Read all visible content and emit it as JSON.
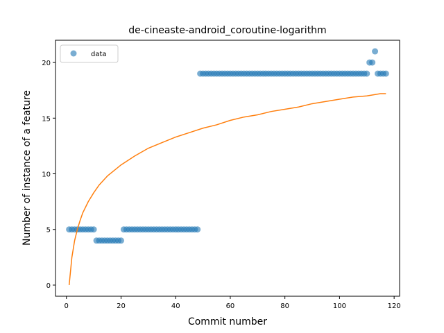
{
  "chart_data": {
    "type": "scatter",
    "title": "de-cineaste-android_coroutine-logarithm",
    "xlabel": "Commit number",
    "ylabel": "Number of instance of a feature",
    "xlim": [
      -4,
      122
    ],
    "ylim": [
      -1,
      22
    ],
    "xticks": [
      0,
      20,
      40,
      60,
      80,
      100,
      120
    ],
    "yticks": [
      0,
      5,
      10,
      15,
      20
    ],
    "grid": false,
    "legend": {
      "location": "upper left",
      "entries": [
        "data"
      ]
    },
    "colors": {
      "data": "#1f77b4",
      "fit": "#ff7f0e"
    },
    "series": [
      {
        "name": "data",
        "kind": "scatter",
        "points": [
          [
            1,
            5
          ],
          [
            2,
            5
          ],
          [
            3,
            5
          ],
          [
            4,
            5
          ],
          [
            5,
            5
          ],
          [
            6,
            5
          ],
          [
            7,
            5
          ],
          [
            8,
            5
          ],
          [
            9,
            5
          ],
          [
            10,
            5
          ],
          [
            11,
            4
          ],
          [
            12,
            4
          ],
          [
            13,
            4
          ],
          [
            14,
            4
          ],
          [
            15,
            4
          ],
          [
            16,
            4
          ],
          [
            17,
            4
          ],
          [
            18,
            4
          ],
          [
            19,
            4
          ],
          [
            20,
            4
          ],
          [
            21,
            5
          ],
          [
            22,
            5
          ],
          [
            23,
            5
          ],
          [
            24,
            5
          ],
          [
            25,
            5
          ],
          [
            26,
            5
          ],
          [
            27,
            5
          ],
          [
            28,
            5
          ],
          [
            29,
            5
          ],
          [
            30,
            5
          ],
          [
            31,
            5
          ],
          [
            32,
            5
          ],
          [
            33,
            5
          ],
          [
            34,
            5
          ],
          [
            35,
            5
          ],
          [
            36,
            5
          ],
          [
            37,
            5
          ],
          [
            38,
            5
          ],
          [
            39,
            5
          ],
          [
            40,
            5
          ],
          [
            41,
            5
          ],
          [
            42,
            5
          ],
          [
            43,
            5
          ],
          [
            44,
            5
          ],
          [
            45,
            5
          ],
          [
            46,
            5
          ],
          [
            47,
            5
          ],
          [
            48,
            5
          ],
          [
            49,
            19
          ],
          [
            50,
            19
          ],
          [
            51,
            19
          ],
          [
            52,
            19
          ],
          [
            53,
            19
          ],
          [
            54,
            19
          ],
          [
            55,
            19
          ],
          [
            56,
            19
          ],
          [
            57,
            19
          ],
          [
            58,
            19
          ],
          [
            59,
            19
          ],
          [
            60,
            19
          ],
          [
            61,
            19
          ],
          [
            62,
            19
          ],
          [
            63,
            19
          ],
          [
            64,
            19
          ],
          [
            65,
            19
          ],
          [
            66,
            19
          ],
          [
            67,
            19
          ],
          [
            68,
            19
          ],
          [
            69,
            19
          ],
          [
            70,
            19
          ],
          [
            71,
            19
          ],
          [
            72,
            19
          ],
          [
            73,
            19
          ],
          [
            74,
            19
          ],
          [
            75,
            19
          ],
          [
            76,
            19
          ],
          [
            77,
            19
          ],
          [
            78,
            19
          ],
          [
            79,
            19
          ],
          [
            80,
            19
          ],
          [
            81,
            19
          ],
          [
            82,
            19
          ],
          [
            83,
            19
          ],
          [
            84,
            19
          ],
          [
            85,
            19
          ],
          [
            86,
            19
          ],
          [
            87,
            19
          ],
          [
            88,
            19
          ],
          [
            89,
            19
          ],
          [
            90,
            19
          ],
          [
            91,
            19
          ],
          [
            92,
            19
          ],
          [
            93,
            19
          ],
          [
            94,
            19
          ],
          [
            95,
            19
          ],
          [
            96,
            19
          ],
          [
            97,
            19
          ],
          [
            98,
            19
          ],
          [
            99,
            19
          ],
          [
            100,
            19
          ],
          [
            101,
            19
          ],
          [
            102,
            19
          ],
          [
            103,
            19
          ],
          [
            104,
            19
          ],
          [
            105,
            19
          ],
          [
            106,
            19
          ],
          [
            107,
            19
          ],
          [
            108,
            19
          ],
          [
            109,
            19
          ],
          [
            110,
            19
          ],
          [
            111,
            20
          ],
          [
            112,
            20
          ],
          [
            113,
            21
          ],
          [
            114,
            19
          ],
          [
            115,
            19
          ],
          [
            116,
            19
          ],
          [
            117,
            19
          ]
        ]
      },
      {
        "kind": "line",
        "points": [
          [
            1,
            0
          ],
          [
            2,
            2.5
          ],
          [
            3,
            4.0
          ],
          [
            4,
            5.0
          ],
          [
            5,
            5.8
          ],
          [
            6,
            6.5
          ],
          [
            8,
            7.5
          ],
          [
            10,
            8.3
          ],
          [
            12,
            9.0
          ],
          [
            15,
            9.8
          ],
          [
            20,
            10.8
          ],
          [
            25,
            11.6
          ],
          [
            30,
            12.3
          ],
          [
            35,
            12.8
          ],
          [
            40,
            13.3
          ],
          [
            45,
            13.7
          ],
          [
            50,
            14.1
          ],
          [
            55,
            14.4
          ],
          [
            60,
            14.8
          ],
          [
            65,
            15.1
          ],
          [
            70,
            15.3
          ],
          [
            75,
            15.6
          ],
          [
            80,
            15.8
          ],
          [
            85,
            16.0
          ],
          [
            90,
            16.3
          ],
          [
            95,
            16.5
          ],
          [
            100,
            16.7
          ],
          [
            105,
            16.9
          ],
          [
            110,
            17.0
          ],
          [
            115,
            17.2
          ],
          [
            117,
            17.2
          ]
        ]
      }
    ]
  }
}
